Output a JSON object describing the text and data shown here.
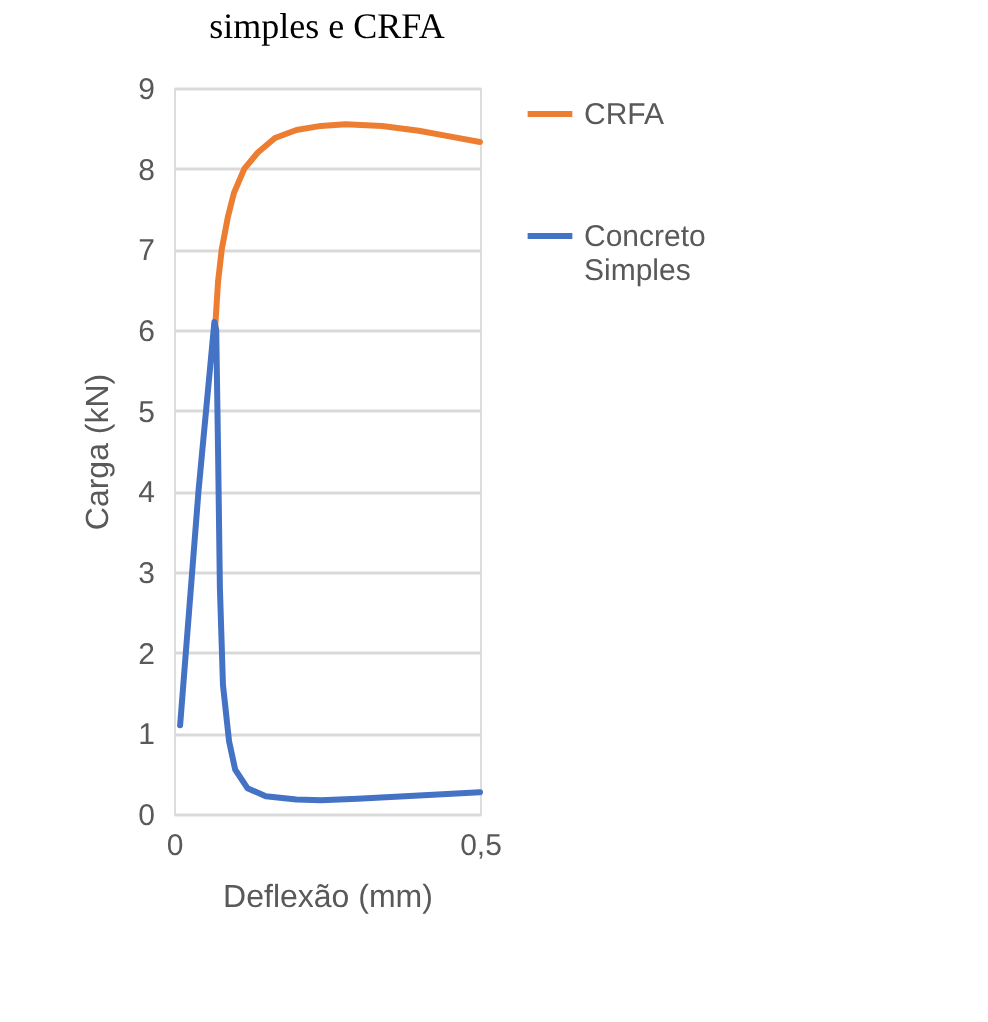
{
  "chart_data": {
    "type": "line",
    "title": "simples e CRFA",
    "xlabel": "Deflexão (mm)",
    "ylabel": "Carga (kN)",
    "xlim": [
      0,
      0.5
    ],
    "xticks": [
      0,
      {
        "value": 0.5,
        "label": "0,5"
      }
    ],
    "ylim": [
      0,
      9
    ],
    "yticks": [
      0,
      1,
      2,
      3,
      4,
      5,
      6,
      7,
      8,
      9
    ],
    "grid": "y",
    "legend": "right",
    "series": [
      {
        "name": "CRFA",
        "color": "#ed7d31",
        "x": [
          0.067,
          0.072,
          0.078,
          0.088,
          0.098,
          0.115,
          0.137,
          0.165,
          0.2,
          0.24,
          0.28,
          0.34,
          0.4,
          0.45,
          0.5
        ],
        "values": [
          6.0,
          6.6,
          7.0,
          7.4,
          7.7,
          8.0,
          8.2,
          8.38,
          8.48,
          8.53,
          8.55,
          8.53,
          8.47,
          8.4,
          8.33
        ]
      },
      {
        "name": "Concreto Simples",
        "color": "#4472c4",
        "x": [
          0.01,
          0.04,
          0.066,
          0.069,
          0.072,
          0.075,
          0.08,
          0.09,
          0.1,
          0.12,
          0.15,
          0.2,
          0.24,
          0.3,
          0.4,
          0.5
        ],
        "values": [
          1.1,
          4.0,
          6.1,
          6.0,
          4.5,
          2.8,
          1.6,
          0.9,
          0.55,
          0.32,
          0.22,
          0.18,
          0.17,
          0.19,
          0.23,
          0.27
        ]
      }
    ]
  }
}
